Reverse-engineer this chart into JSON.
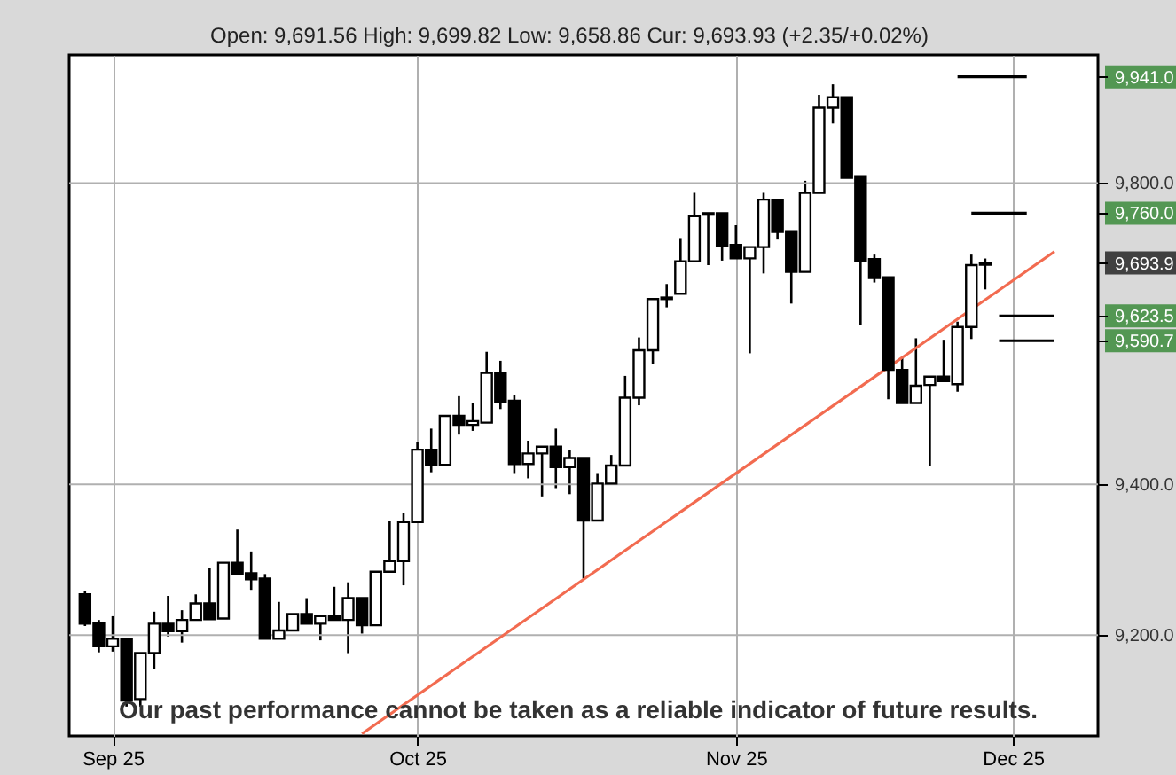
{
  "chart_data": {
    "type": "candlestick",
    "subtitle": "Open: 9,691.56 High: 9,699.82 Low: 9,658.86 Cur: 9,693.93 (+2.35/+0.02%)",
    "categories": [
      null,
      null,
      "Sep 25",
      null,
      null,
      null,
      null,
      null,
      null,
      null,
      null,
      null,
      null,
      null,
      null,
      null,
      null,
      null,
      null,
      null,
      null,
      null,
      null,
      null,
      "Oct 25",
      null,
      null,
      null,
      null,
      null,
      null,
      null,
      null,
      null,
      null,
      null,
      null,
      null,
      null,
      null,
      null,
      null,
      null,
      null,
      null,
      null,
      null,
      "Nov 25",
      null,
      null,
      null,
      null,
      null,
      null,
      null,
      null,
      null,
      null,
      null,
      null,
      null,
      null,
      null,
      null,
      null,
      null,
      null,
      "Dec 25",
      null,
      null,
      null,
      null,
      null
    ],
    "ohlc": [
      [
        9254,
        9258,
        9212,
        9215
      ],
      [
        9216,
        9220,
        9177,
        9185
      ],
      [
        9185,
        9225,
        9178,
        9195
      ],
      [
        9195,
        9195,
        9105,
        9113
      ],
      [
        9115,
        9176,
        9105,
        9176
      ],
      [
        9176,
        9231,
        9155,
        9215
      ],
      [
        9215,
        9252,
        9198,
        9205
      ],
      [
        9205,
        9233,
        9190,
        9220
      ],
      [
        9220,
        9254,
        9220,
        9242
      ],
      [
        9242,
        9289,
        9221,
        9221
      ],
      [
        9222,
        9296,
        9222,
        9296
      ],
      [
        9296,
        9340,
        9281,
        9281
      ],
      [
        9282,
        9311,
        9260,
        9274
      ],
      [
        9275,
        9281,
        9195,
        9195
      ],
      [
        9195,
        9244,
        9195,
        9206
      ],
      [
        9206,
        9228,
        9206,
        9228
      ],
      [
        9228,
        9249,
        9215,
        9215
      ],
      [
        9215,
        9225,
        9193,
        9225
      ],
      [
        9225,
        9264,
        9220,
        9220
      ],
      [
        9220,
        9270,
        9176,
        9249
      ],
      [
        9249,
        9249,
        9202,
        9213
      ],
      [
        9213,
        9284,
        9213,
        9284
      ],
      [
        9284,
        9352,
        9284,
        9298
      ],
      [
        9298,
        9362,
        9266,
        9350
      ],
      [
        9350,
        9456,
        9350,
        9446
      ],
      [
        9446,
        9474,
        9416,
        9426
      ],
      [
        9426,
        9491,
        9426,
        9491
      ],
      [
        9491,
        9517,
        9466,
        9479
      ],
      [
        9479,
        9508,
        9471,
        9484
      ],
      [
        9482,
        9576,
        9482,
        9548
      ],
      [
        9548,
        9564,
        9500,
        9509
      ],
      [
        9511,
        9519,
        9415,
        9427
      ],
      [
        9427,
        9458,
        9408,
        9441
      ],
      [
        9441,
        9450,
        9384,
        9450
      ],
      [
        9450,
        9474,
        9395,
        9423
      ],
      [
        9423,
        9445,
        9387,
        9435
      ],
      [
        9435,
        9435,
        9275,
        9352
      ],
      [
        9352,
        9415,
        9352,
        9401
      ],
      [
        9401,
        9439,
        9401,
        9425
      ],
      [
        9425,
        9544,
        9425,
        9515
      ],
      [
        9515,
        9595,
        9505,
        9578
      ],
      [
        9578,
        9646,
        9560,
        9646
      ],
      [
        9646,
        9666,
        9635,
        9648
      ],
      [
        9653,
        9727,
        9653,
        9696
      ],
      [
        9696,
        9787,
        9696,
        9756
      ],
      [
        9758,
        9760,
        9691,
        9760
      ],
      [
        9760,
        9760,
        9697,
        9717
      ],
      [
        9718,
        9744,
        9700,
        9700
      ],
      [
        9700,
        9715,
        9574,
        9715
      ],
      [
        9715,
        9787,
        9680,
        9778
      ],
      [
        9778,
        9778,
        9725,
        9735
      ],
      [
        9736,
        9736,
        9640,
        9682
      ],
      [
        9682,
        9803,
        9682,
        9787
      ],
      [
        9787,
        9917,
        9787,
        9900
      ],
      [
        9900,
        9931,
        9879,
        9914
      ],
      [
        9914,
        9914,
        9807,
        9807
      ],
      [
        9809,
        9809,
        9611,
        9697
      ],
      [
        9699,
        9705,
        9668,
        9674
      ],
      [
        9675,
        9675,
        9513,
        9552
      ],
      [
        9552,
        9568,
        9508,
        9508
      ],
      [
        9508,
        9594,
        9508,
        9531
      ],
      [
        9532,
        9543,
        9424,
        9543
      ],
      [
        9543,
        9592,
        9537,
        9537
      ],
      [
        9533,
        9616,
        9523,
        9609
      ],
      [
        9609,
        9705,
        9593,
        9691
      ],
      [
        9691.56,
        9699.82,
        9658.86,
        9693.93
      ],
      null,
      null,
      null,
      null,
      null,
      null,
      null
    ],
    "series": [
      {
        "type": "line",
        "color": "#f26b50",
        "values": [
          null,
          null,
          null,
          null,
          null,
          null,
          null,
          null,
          null,
          null,
          null,
          null,
          null,
          null,
          null,
          null,
          null,
          null,
          null,
          null,
          9069,
          null,
          null,
          null,
          null,
          null,
          null,
          null,
          null,
          null,
          null,
          null,
          null,
          null,
          null,
          null,
          null,
          null,
          null,
          null,
          null,
          null,
          null,
          null,
          null,
          null,
          null,
          null,
          null,
          null,
          null,
          null,
          null,
          null,
          null,
          null,
          null,
          null,
          null,
          null,
          null,
          null,
          null,
          null,
          null,
          null,
          null,
          null,
          null,
          null,
          9709,
          null,
          null
        ]
      },
      {
        "type": "line",
        "color": "#000000",
        "values": [
          null,
          null,
          null,
          null,
          null,
          null,
          null,
          null,
          null,
          null,
          null,
          null,
          null,
          null,
          null,
          null,
          null,
          null,
          null,
          null,
          null,
          null,
          null,
          null,
          null,
          null,
          null,
          null,
          null,
          null,
          null,
          null,
          null,
          null,
          null,
          null,
          null,
          null,
          null,
          null,
          null,
          null,
          null,
          null,
          null,
          null,
          null,
          null,
          null,
          null,
          null,
          null,
          null,
          null,
          null,
          null,
          null,
          null,
          null,
          null,
          null,
          null,
          null,
          9941,
          null,
          null,
          null,
          null,
          9941,
          null,
          null,
          null,
          null
        ]
      },
      {
        "type": "line",
        "color": "#000000",
        "values": [
          null,
          null,
          null,
          null,
          null,
          null,
          null,
          null,
          null,
          null,
          null,
          null,
          null,
          null,
          null,
          null,
          null,
          null,
          null,
          null,
          null,
          null,
          null,
          null,
          null,
          null,
          null,
          null,
          null,
          null,
          null,
          null,
          null,
          null,
          null,
          null,
          null,
          null,
          null,
          null,
          null,
          null,
          null,
          null,
          null,
          null,
          null,
          null,
          null,
          null,
          null,
          null,
          null,
          null,
          null,
          null,
          null,
          null,
          null,
          null,
          null,
          null,
          null,
          null,
          9760,
          null,
          null,
          null,
          9760,
          null,
          null,
          null,
          null
        ]
      },
      {
        "type": "line",
        "color": "#000000",
        "values": [
          null,
          null,
          null,
          null,
          null,
          null,
          null,
          null,
          null,
          null,
          null,
          null,
          null,
          null,
          null,
          null,
          null,
          null,
          null,
          null,
          null,
          null,
          null,
          null,
          null,
          null,
          null,
          null,
          null,
          null,
          null,
          null,
          null,
          null,
          null,
          null,
          null,
          null,
          null,
          null,
          null,
          null,
          null,
          null,
          null,
          null,
          null,
          null,
          null,
          null,
          null,
          null,
          null,
          null,
          null,
          null,
          null,
          null,
          null,
          null,
          null,
          null,
          null,
          null,
          null,
          null,
          9623.5,
          null,
          null,
          null,
          9623.5,
          null,
          null
        ]
      },
      {
        "type": "line",
        "color": "#000000",
        "values": [
          null,
          null,
          null,
          null,
          null,
          null,
          null,
          null,
          null,
          null,
          null,
          null,
          null,
          null,
          null,
          null,
          null,
          null,
          null,
          null,
          null,
          null,
          null,
          null,
          null,
          null,
          null,
          null,
          null,
          null,
          null,
          null,
          null,
          null,
          null,
          null,
          null,
          null,
          null,
          null,
          null,
          null,
          null,
          null,
          null,
          null,
          null,
          null,
          null,
          null,
          null,
          null,
          null,
          null,
          null,
          null,
          null,
          null,
          null,
          null,
          null,
          null,
          null,
          null,
          null,
          null,
          9590.7,
          null,
          null,
          null,
          9590.7,
          null,
          null
        ]
      }
    ],
    "annotations": [
      "Our past performance cannot be taken as a reliable indicator of future results."
    ],
    "ylim": [
      9066,
      9970
    ],
    "yticks": [
      {
        "value": 9200,
        "label": "9,200.0"
      },
      {
        "value": 9400,
        "label": "9,400.0"
      },
      {
        "value": 9590.7,
        "label": "9,590.7"
      },
      {
        "value": 9623.5,
        "label": "9,623.5"
      },
      {
        "value": 9693.93,
        "label": "9,693.9"
      },
      {
        "value": 9760,
        "label": "9,760.0"
      },
      {
        "value": 9800,
        "label": "9,800.0"
      },
      {
        "value": 9941,
        "label": "9,941.0"
      }
    ],
    "grid": true
  }
}
